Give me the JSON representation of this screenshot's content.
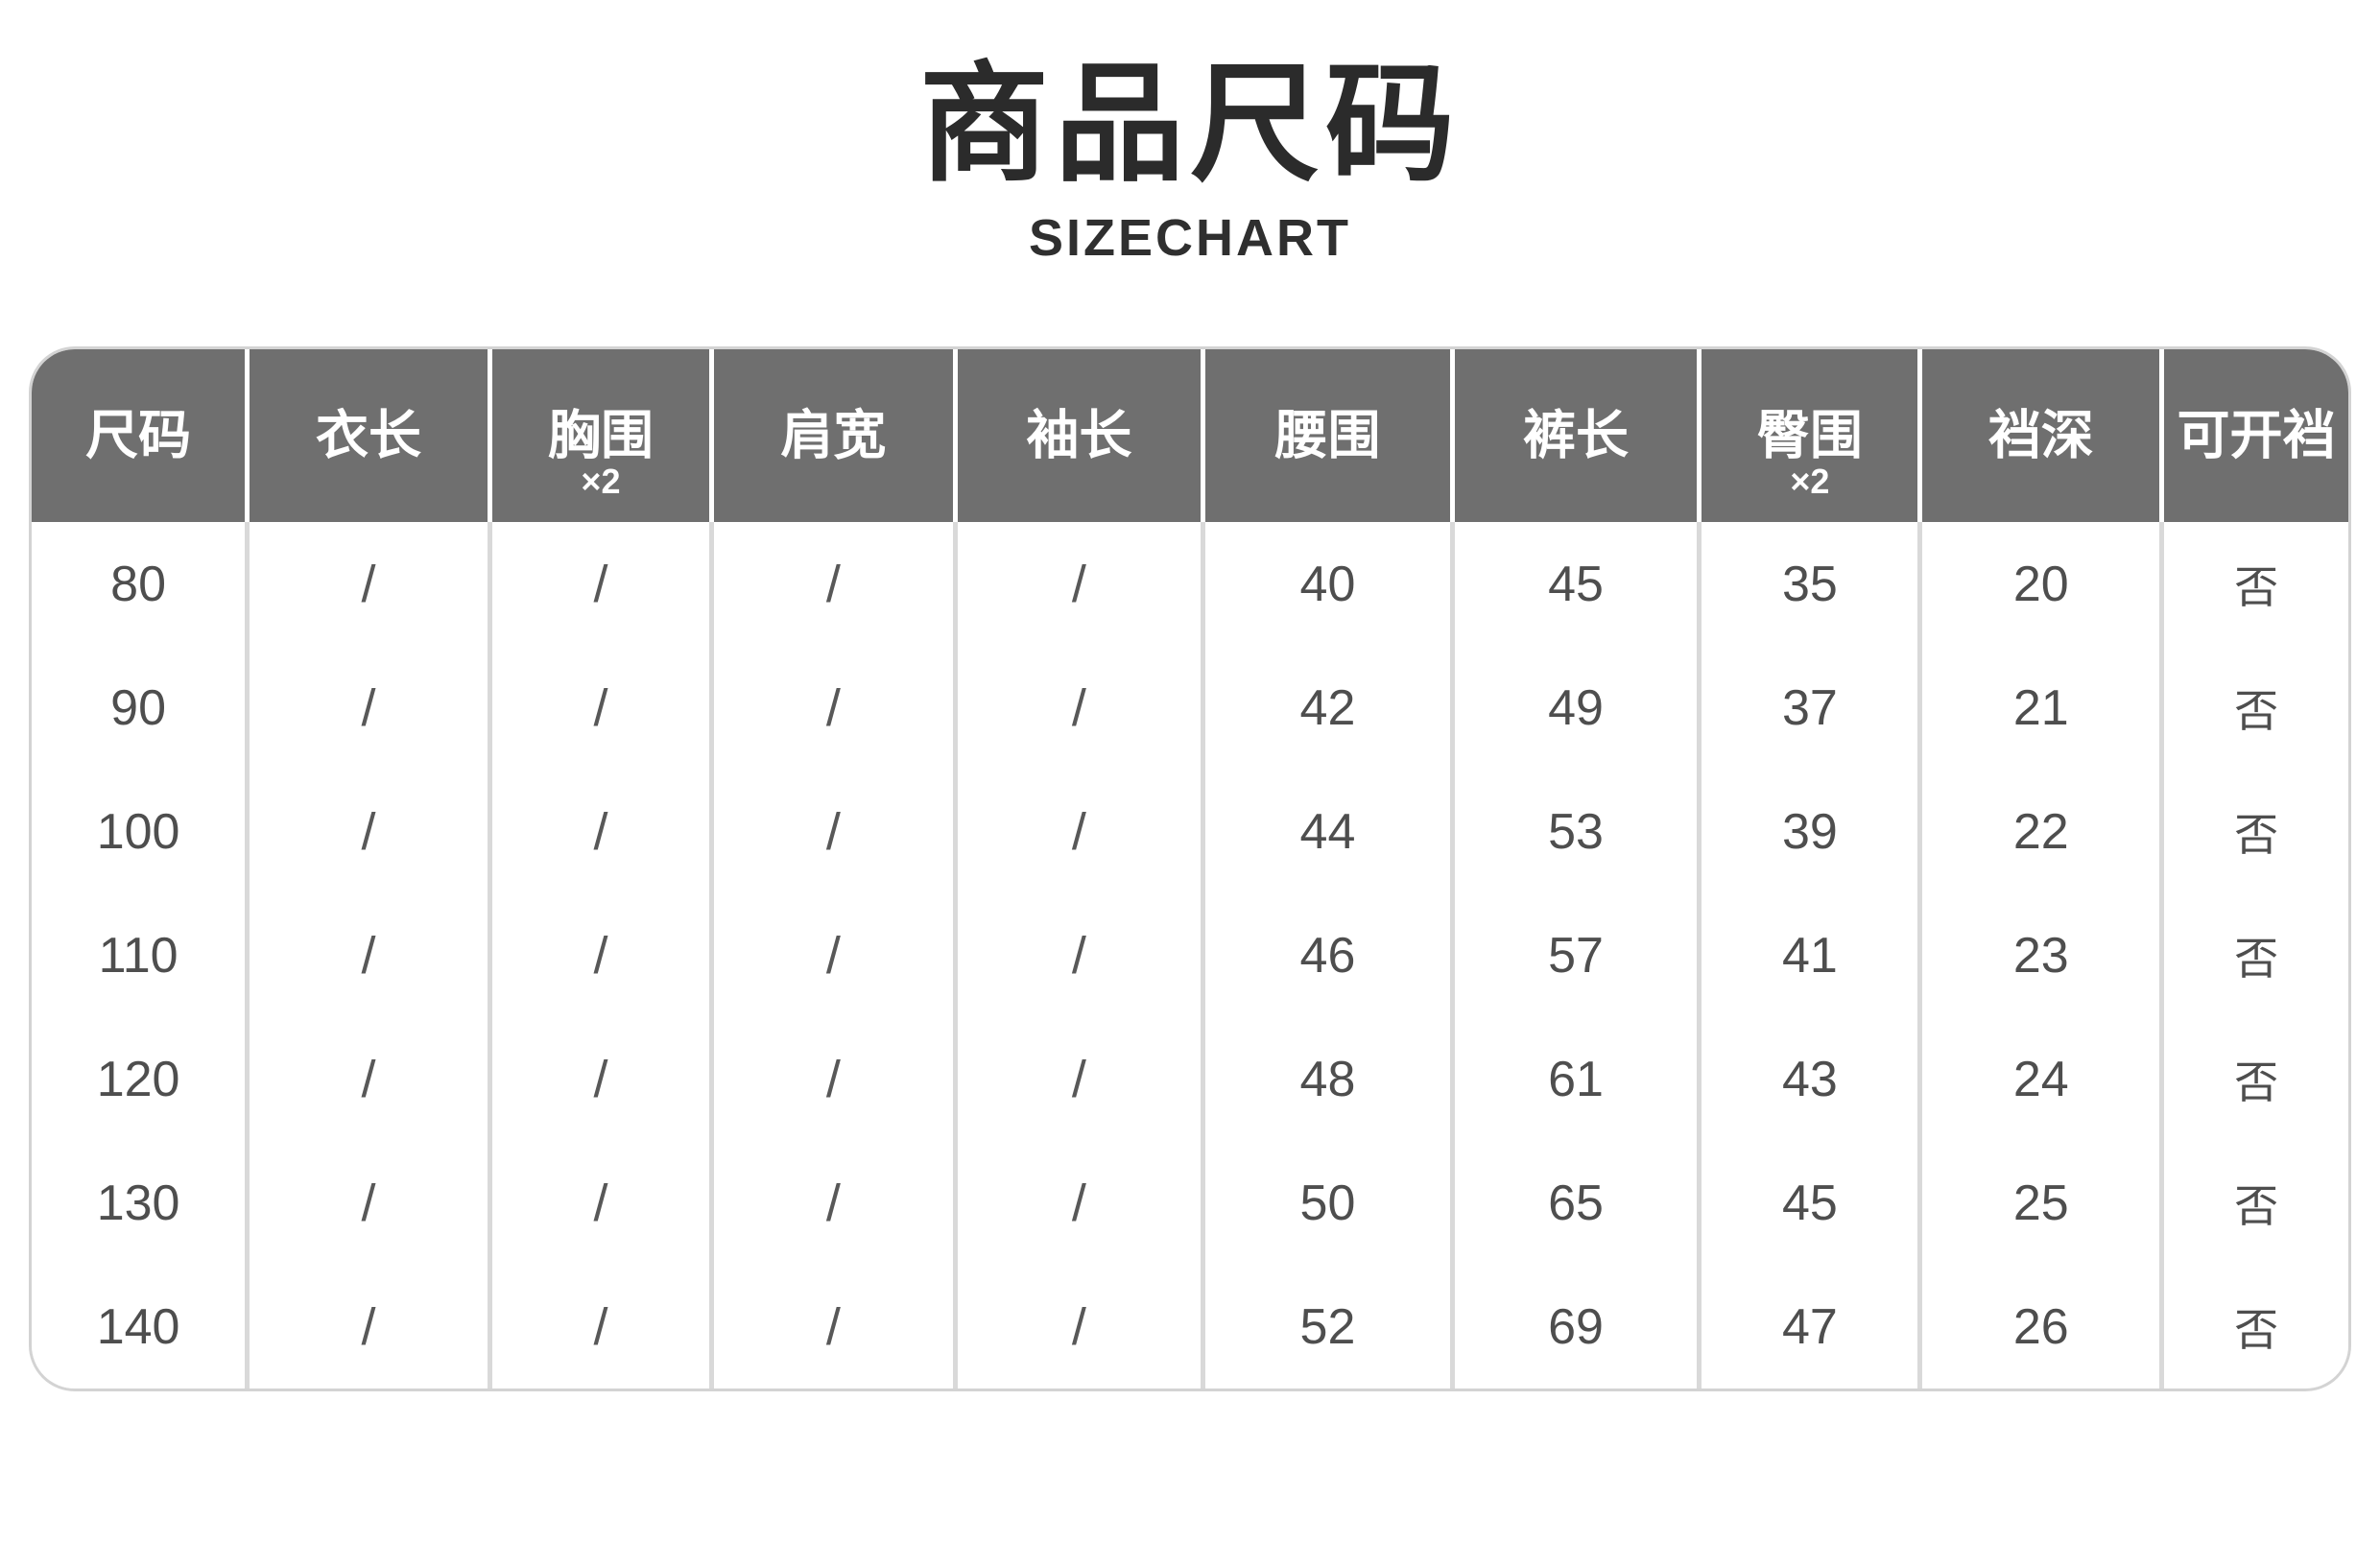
{
  "title": "商品尺码",
  "subtitle": "SIZECHART",
  "colors": {
    "header_background": "#6f6f6f",
    "header_text": "#ffffff",
    "body_text": "#4e4e4e",
    "grid_line": "#d9d9d9",
    "outer_border": "#d3d3d3",
    "title_text": "#2b2b2b"
  },
  "chart_data": {
    "type": "table",
    "title": "商品尺码",
    "subtitle": "SIZECHART",
    "columns": [
      "尺码",
      "衣长",
      "胸围×2",
      "肩宽",
      "袖长",
      "腰围",
      "裤长",
      "臀围×2",
      "裆深",
      "可开裆"
    ],
    "rows": [
      [
        "80",
        "/",
        "/",
        "/",
        "/",
        "40",
        "45",
        "35",
        "20",
        "否"
      ],
      [
        "90",
        "/",
        "/",
        "/",
        "/",
        "42",
        "49",
        "37",
        "21",
        "否"
      ],
      [
        "100",
        "/",
        "/",
        "/",
        "/",
        "44",
        "53",
        "39",
        "22",
        "否"
      ],
      [
        "110",
        "/",
        "/",
        "/",
        "/",
        "46",
        "57",
        "41",
        "23",
        "否"
      ],
      [
        "120",
        "/",
        "/",
        "/",
        "/",
        "48",
        "61",
        "43",
        "24",
        "否"
      ],
      [
        "130",
        "/",
        "/",
        "/",
        "/",
        "50",
        "65",
        "45",
        "25",
        "否"
      ],
      [
        "140",
        "/",
        "/",
        "/",
        "/",
        "52",
        "69",
        "47",
        "26",
        "否"
      ]
    ]
  },
  "table": {
    "header": [
      {
        "label": "尺码",
        "sub": ""
      },
      {
        "label": "衣长",
        "sub": ""
      },
      {
        "label": "胸围",
        "sub": "×2"
      },
      {
        "label": "肩宽",
        "sub": ""
      },
      {
        "label": "袖长",
        "sub": ""
      },
      {
        "label": "腰围",
        "sub": ""
      },
      {
        "label": "裤长",
        "sub": ""
      },
      {
        "label": "臀围",
        "sub": "×2"
      },
      {
        "label": "裆深",
        "sub": ""
      },
      {
        "label": "可开裆",
        "sub": ""
      }
    ],
    "rows": [
      [
        "80",
        "/",
        "/",
        "/",
        "/",
        "40",
        "45",
        "35",
        "20",
        "否"
      ],
      [
        "90",
        "/",
        "/",
        "/",
        "/",
        "42",
        "49",
        "37",
        "21",
        "否"
      ],
      [
        "100",
        "/",
        "/",
        "/",
        "/",
        "44",
        "53",
        "39",
        "22",
        "否"
      ],
      [
        "110",
        "/",
        "/",
        "/",
        "/",
        "46",
        "57",
        "41",
        "23",
        "否"
      ],
      [
        "120",
        "/",
        "/",
        "/",
        "/",
        "48",
        "61",
        "43",
        "24",
        "否"
      ],
      [
        "130",
        "/",
        "/",
        "/",
        "/",
        "50",
        "65",
        "45",
        "25",
        "否"
      ],
      [
        "140",
        "/",
        "/",
        "/",
        "/",
        "52",
        "69",
        "47",
        "26",
        "否"
      ]
    ]
  }
}
